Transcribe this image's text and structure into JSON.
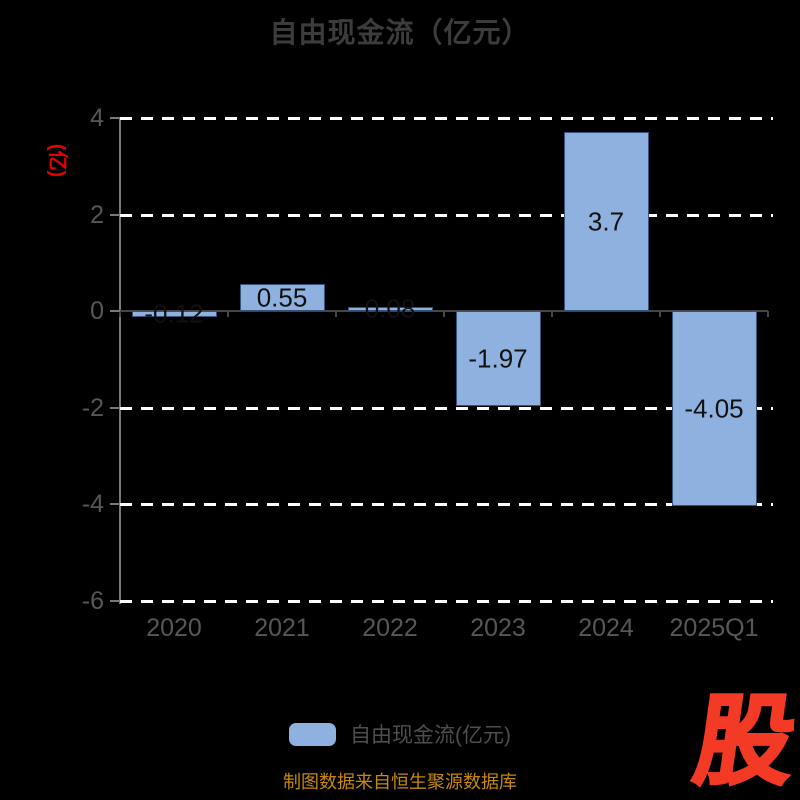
{
  "title": "自由现金流（亿元）",
  "chart_data": {
    "type": "bar",
    "categories": [
      "2020",
      "2021",
      "2022",
      "2023",
      "2024",
      "2025Q1"
    ],
    "values": [
      -0.12,
      0.55,
      0.08,
      -1.97,
      3.7,
      -4.05
    ],
    "value_labels": [
      "-0.12",
      "0.55",
      "0.08",
      "-1.97",
      "3.7",
      "-4.05"
    ],
    "title": "自由现金流（亿元）",
    "xlabel": "",
    "ylabel": "(亿)",
    "ylim": [
      -6,
      4
    ],
    "yticks": [
      4,
      2,
      0,
      -2,
      -4,
      -6
    ],
    "grid": "horizontal-dashed-white",
    "legend_position": "bottom",
    "bar_color": "#8fb1df",
    "bar_border_color": "#35527a",
    "label_color": "#111111"
  },
  "legend": {
    "label": "自由现金流(亿元)",
    "swatch_color": "#8fb1df"
  },
  "footer": {
    "source_note": "制图数据来自恒生聚源数据库"
  },
  "logo": {
    "text": "股",
    "color": "#f23a25"
  },
  "colors": {
    "background": "#000000",
    "title_text": "#3c3c3c",
    "axis_line": "#787878",
    "zero_line": "#454545",
    "tick_label": "#575757",
    "gridline": "#ffffff",
    "y_unit_label": "#e60000",
    "footer_text": "#c6890d"
  }
}
